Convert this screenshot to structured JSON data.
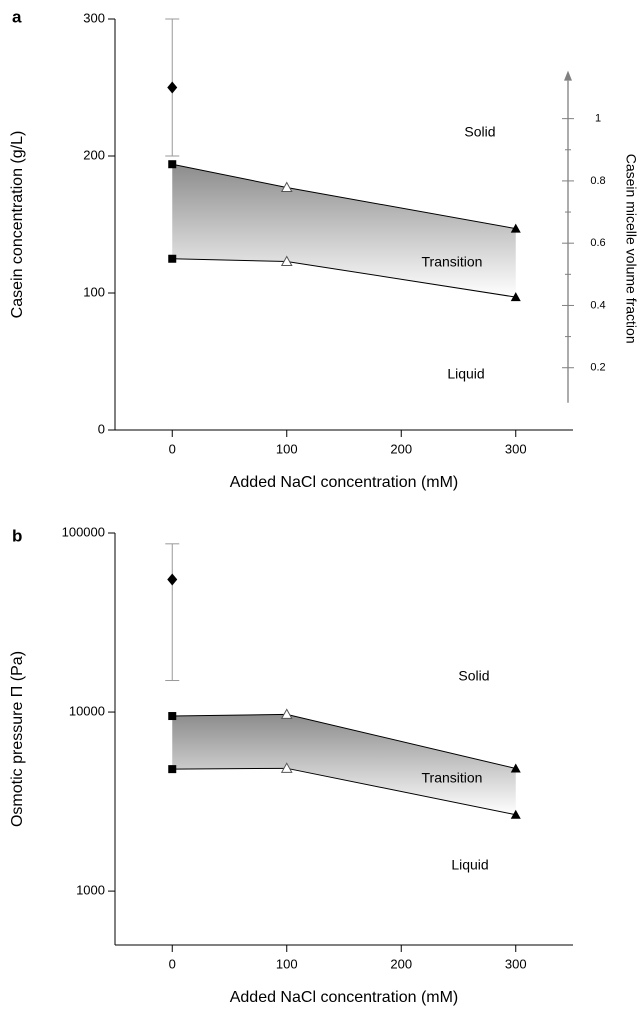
{
  "chart_data": [
    {
      "type": "line",
      "panel_label": "a",
      "xlabel": "Added NaCl concentration (mM)",
      "ylabel": "Casein concentration (g/L)",
      "y2label": "Casein micelle volume fraction",
      "y2color": "#808080",
      "xlim": [
        -50,
        350
      ],
      "xticks": [
        0,
        100,
        200,
        300
      ],
      "ylim": [
        0,
        300
      ],
      "yticks": [
        0,
        100,
        200,
        300
      ],
      "y2lim": [
        0,
        1.32
      ],
      "y2ticks": [
        0.2,
        0.4,
        0.6,
        0.8,
        1
      ],
      "log_y": false,
      "point": {
        "x": [
          0
        ],
        "values": [
          250
        ],
        "error_low": [
          50
        ],
        "error_high": [
          50
        ],
        "marker": "diamond",
        "color": "#000000",
        "error_color": "#999999"
      },
      "series": [
        {
          "x": [
            0,
            100,
            300
          ],
          "values": [
            194,
            177,
            147
          ],
          "markers": [
            "square",
            "triangle-open",
            "triangle"
          ],
          "color": "#000000"
        },
        {
          "x": [
            0,
            100,
            300
          ],
          "values": [
            125,
            123,
            97
          ],
          "markers": [
            "square",
            "triangle-open",
            "triangle"
          ],
          "color": "#000000"
        }
      ],
      "band_colors": [
        "#8c8c8c",
        "#ffffff"
      ],
      "annotations": [
        "Solid",
        "Transition",
        "Liquid"
      ]
    },
    {
      "type": "line",
      "panel_label": "b",
      "xlabel": "Added NaCl concentration (mM)",
      "ylabel": "Osmotic pressure Π (Pa)",
      "xlim": [
        -50,
        350
      ],
      "xticks": [
        0,
        100,
        200,
        300
      ],
      "ylim": [
        500,
        100000
      ],
      "yticks": [
        1000,
        10000,
        100000
      ],
      "log_y": true,
      "point": {
        "x": [
          0
        ],
        "values": [
          55000
        ],
        "error_low": [
          40000
        ],
        "error_high": [
          32000
        ],
        "marker": "diamond",
        "color": "#000000",
        "error_color": "#999999"
      },
      "series": [
        {
          "x": [
            0,
            100,
            300
          ],
          "values": [
            9500,
            9700,
            4840
          ],
          "markers": [
            "square",
            "triangle-open",
            "triangle"
          ],
          "color": "#000000"
        },
        {
          "x": [
            0,
            100,
            300
          ],
          "values": [
            4800,
            4850,
            2670
          ],
          "markers": [
            "square",
            "triangle-open",
            "triangle"
          ],
          "color": "#000000"
        }
      ],
      "band_colors": [
        "#8c8c8c",
        "#ffffff"
      ],
      "annotations": [
        "Solid",
        "Transition",
        "Liquid"
      ]
    }
  ]
}
